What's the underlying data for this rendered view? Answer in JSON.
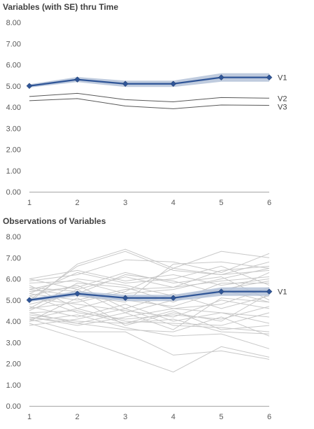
{
  "chart_data": [
    {
      "type": "line",
      "title": "Variables (with SE) thru Time",
      "xlabel": "",
      "ylabel": "",
      "x": [
        1,
        2,
        3,
        4,
        5,
        6
      ],
      "y_ticks": [
        "0.00",
        "1.00",
        "2.00",
        "3.00",
        "4.00",
        "5.00",
        "6.00",
        "7.00",
        "8.00"
      ],
      "ylim": [
        0,
        8
      ],
      "grid": false,
      "series": [
        {
          "name": "V1",
          "values": [
            5.0,
            5.3,
            5.1,
            5.1,
            5.4,
            5.4
          ],
          "se_lower": [
            4.92,
            5.18,
            4.95,
            4.95,
            5.2,
            5.2
          ],
          "se_upper": [
            5.08,
            5.42,
            5.25,
            5.25,
            5.6,
            5.6
          ],
          "color": "#2F5597",
          "band_color": "#B4C2D8",
          "markers": true
        },
        {
          "name": "V2",
          "values": [
            4.5,
            4.65,
            4.35,
            4.25,
            4.45,
            4.42
          ],
          "color": "#595959"
        },
        {
          "name": "V3",
          "values": [
            4.3,
            4.4,
            4.05,
            3.92,
            4.1,
            4.08
          ],
          "color": "#595959"
        }
      ]
    },
    {
      "type": "line",
      "title": "Observations of Variables",
      "xlabel": "",
      "ylabel": "",
      "x": [
        1,
        2,
        3,
        4,
        5,
        6
      ],
      "y_ticks": [
        "0.00",
        "1.00",
        "2.00",
        "3.00",
        "4.00",
        "5.00",
        "6.00",
        "7.00",
        "8.00"
      ],
      "ylim": [
        0,
        8
      ],
      "grid": false,
      "observation_color": "#C8C8C8",
      "observations": [
        [
          5.0,
          6.6,
          7.3,
          6.4,
          6.2,
          6.4
        ],
        [
          4.9,
          6.7,
          7.4,
          6.5,
          7.3,
          7.0
        ],
        [
          5.9,
          6.2,
          6.9,
          6.8,
          6.3,
          7.2
        ],
        [
          5.5,
          5.2,
          4.9,
          6.7,
          6.8,
          6.5
        ],
        [
          6.0,
          5.5,
          6.1,
          5.6,
          5.9,
          6.1
        ],
        [
          5.3,
          6.3,
          5.8,
          6.0,
          6.6,
          5.7
        ],
        [
          4.5,
          5.5,
          4.4,
          5.0,
          5.5,
          5.9
        ],
        [
          4.2,
          3.9,
          4.4,
          3.6,
          5.1,
          4.9
        ],
        [
          5.7,
          4.6,
          5.2,
          4.6,
          4.8,
          5.6
        ],
        [
          4.6,
          4.9,
          5.4,
          6.5,
          6.2,
          6.8
        ],
        [
          5.2,
          5.7,
          4.6,
          5.3,
          4.6,
          5.2
        ],
        [
          4.0,
          5.1,
          3.8,
          4.4,
          4.0,
          5.3
        ],
        [
          3.9,
          3.2,
          2.4,
          1.6,
          2.8,
          2.3
        ],
        [
          4.1,
          3.5,
          3.5,
          2.4,
          2.6,
          2.2
        ],
        [
          4.4,
          3.9,
          3.6,
          3.5,
          4.2,
          3.3
        ],
        [
          4.3,
          4.0,
          3.9,
          4.5,
          3.6,
          3.8
        ],
        [
          5.5,
          6.0,
          5.7,
          5.2,
          5.5,
          4.9
        ],
        [
          5.6,
          5.4,
          5.0,
          4.7,
          5.4,
          5.5
        ],
        [
          4.8,
          5.3,
          6.2,
          5.9,
          5.3,
          6.3
        ],
        [
          4.1,
          4.6,
          4.0,
          3.9,
          3.8,
          4.4
        ],
        [
          4.7,
          4.2,
          4.8,
          4.0,
          4.4,
          4.2
        ],
        [
          5.8,
          5.9,
          5.3,
          5.5,
          6.0,
          6.5
        ],
        [
          4.4,
          4.5,
          3.9,
          4.1,
          3.5,
          3.4
        ],
        [
          5.4,
          5.6,
          6.3,
          5.8,
          6.1,
          5.0
        ],
        [
          6.0,
          6.4,
          5.9,
          6.2,
          5.7,
          6.0
        ],
        [
          4.2,
          3.8,
          4.2,
          4.6,
          4.4,
          3.9
        ],
        [
          5.1,
          4.8,
          4.5,
          4.2,
          5.0,
          4.6
        ],
        [
          4.0,
          4.3,
          3.7,
          3.3,
          3.4,
          2.7
        ],
        [
          5.3,
          5.0,
          5.5,
          5.6,
          6.4,
          6.6
        ],
        [
          4.6,
          5.8,
          5.6,
          4.9,
          5.8,
          5.8
        ],
        [
          5.2,
          4.4,
          4.1,
          4.3,
          4.1,
          4.7
        ],
        [
          3.8,
          4.1,
          4.6,
          3.8,
          3.7,
          3.5
        ]
      ],
      "series": [
        {
          "name": "V1",
          "values": [
            5.0,
            5.3,
            5.1,
            5.1,
            5.4,
            5.4
          ],
          "se_lower": [
            4.92,
            5.18,
            4.95,
            4.95,
            5.2,
            5.2
          ],
          "se_upper": [
            5.08,
            5.42,
            5.25,
            5.25,
            5.6,
            5.6
          ],
          "color": "#2F5597",
          "band_color": "#B4C2D8",
          "markers": true
        }
      ]
    }
  ]
}
